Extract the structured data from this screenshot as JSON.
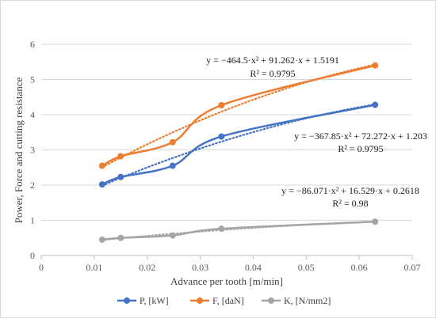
{
  "chart_data": {
    "type": "scatter",
    "xlabel": "Advance per tooth [m/min]",
    "ylabel": "Power, Force and cutting resistance",
    "xlim": [
      0,
      0.07
    ],
    "ylim": [
      0,
      6
    ],
    "xticks": [
      "0",
      "0.01",
      "0.02",
      "0.03",
      "0.04",
      "0.05",
      "0.06",
      "0.07"
    ],
    "yticks": [
      "0",
      "1",
      "2",
      "3",
      "4",
      "5",
      "6"
    ],
    "grid": "horizontal",
    "legend_position": "bottom",
    "x": [
      0.0115,
      0.015,
      0.0248,
      0.034,
      0.063
    ],
    "series": [
      {
        "name": "P, [kW]",
        "color": "#4472c4",
        "values": [
          2.02,
          2.23,
          2.55,
          3.38,
          4.28
        ],
        "trend": {
          "a": -367.85,
          "b": 72.272,
          "c": 1.203
        },
        "equation": "y = −367.85·x² + 72.272·x + 1.203",
        "r2": "R² = 0.9795"
      },
      {
        "name": "F, [daN]",
        "color": "#ed7d31",
        "values": [
          2.55,
          2.82,
          3.22,
          4.27,
          5.4
        ],
        "trend": {
          "a": -464.5,
          "b": 91.262,
          "c": 1.5191
        },
        "equation": "y = −464.5·x² + 91.262·x + 1.5191",
        "r2": "R² = 0.9795"
      },
      {
        "name": "K, [N/mm2]",
        "color": "#a5a5a5",
        "values": [
          0.45,
          0.5,
          0.57,
          0.76,
          0.96
        ],
        "trend": {
          "a": -86.071,
          "b": 16.529,
          "c": 0.2618
        },
        "equation": "y = −86.071·x² + 16.529·x + 0.2618",
        "r2": "R² = 0.98"
      }
    ]
  }
}
